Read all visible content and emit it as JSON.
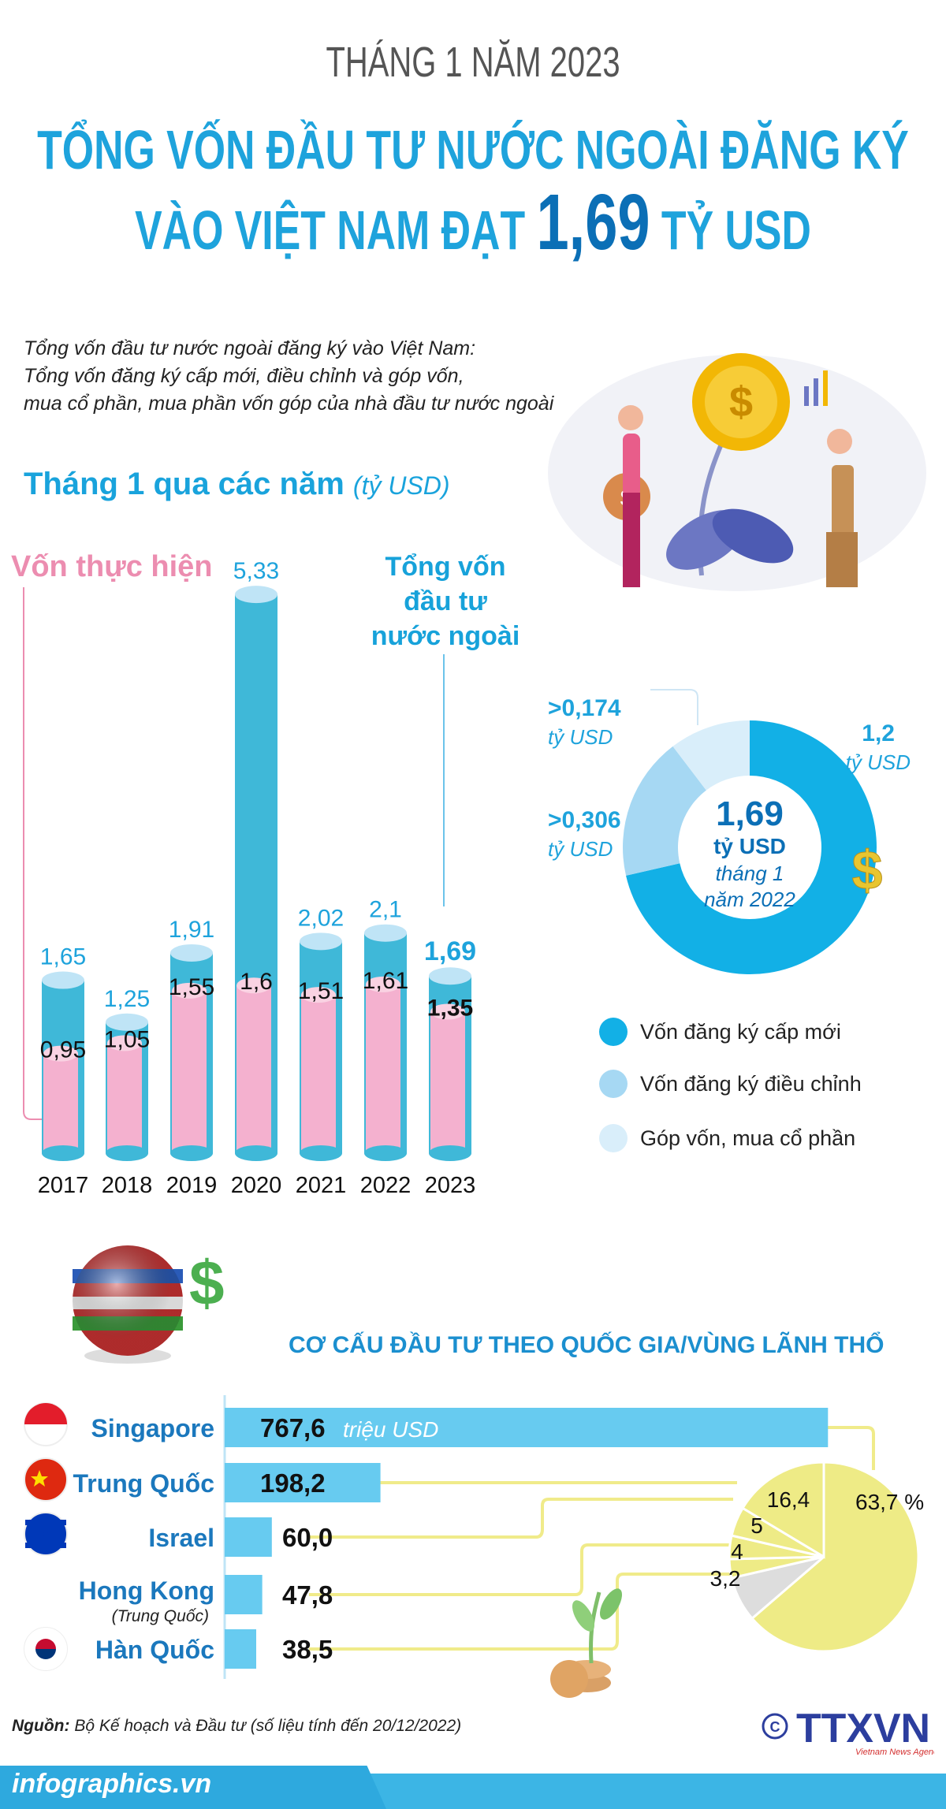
{
  "header": {
    "kicker": "THÁNG 1 NĂM 2023",
    "title_line1": "TỔNG VỐN ĐẦU TƯ NƯỚC NGOÀI ĐĂNG KÝ",
    "title_line2_pre": "VÀO VIỆT NAM ĐẠT",
    "title_value": "1,69",
    "title_line2_post": "TỶ USD"
  },
  "description": [
    "Tổng vốn đầu tư nước ngoài đăng ký vào Việt Nam:",
    "Tổng vốn đăng ký cấp mới, điều chỉnh và góp vốn,",
    "mua cổ phần, mua phần vốn góp của nhà đầu tư nước ngoài"
  ],
  "colors": {
    "title_blue": "#1ea3dc",
    "dark_blue": "#0b6fb6",
    "pink": "#f4b1cf",
    "bar_blue": "#3fb8d8",
    "donut_new": "#12b0e6",
    "donut_adj": "#a6d8f3",
    "donut_contrib": "#d9eefa",
    "country_bar": "#67cbf0",
    "pie_yellow": "#eeeb86",
    "pie_gray": "#dddddd"
  },
  "chart_data": [
    {
      "type": "bar",
      "title": "Tháng 1 qua các năm",
      "unit": "(tỷ USD)",
      "categories": [
        "2017",
        "2018",
        "2019",
        "2020",
        "2021",
        "2022",
        "2023"
      ],
      "category_labels": [
        "2017",
        "2018",
        "2019",
        "2020",
        "2021",
        "2022",
        "2023"
      ],
      "series": [
        {
          "name": "Tổng vốn đầu tư nước ngoài",
          "values": [
            1.65,
            1.25,
            1.91,
            5.33,
            2.02,
            2.1,
            1.69
          ],
          "labels": [
            "1,65",
            "1,25",
            "1,91",
            "5,33",
            "2,02",
            "2,1",
            "1,69"
          ]
        },
        {
          "name": "Vốn thực hiện",
          "values": [
            0.95,
            1.05,
            1.55,
            1.6,
            1.51,
            1.61,
            1.35
          ],
          "labels": [
            "0,95",
            "1,05",
            "1,55",
            "1,6",
            "1,51",
            "1,61",
            "1,35"
          ]
        }
      ],
      "series_title_total": "Tổng vốn đầu tư nước ngoài",
      "series_title_total_lines": [
        "Tổng vốn",
        "đầu tư",
        "nước ngoài"
      ],
      "series_title_disbursed": "Vốn thực hiện"
    },
    {
      "type": "pie",
      "variant": "donut",
      "center": {
        "value": "1,69",
        "unit": "tỷ USD",
        "period_line1": "tháng 1",
        "period_line2": "năm 2022"
      },
      "slices": [
        {
          "name": "Vốn đăng ký cấp mới",
          "value": 1.2,
          "label": "1,2",
          "unit": "tỷ USD"
        },
        {
          "name": "Vốn đăng ký điều chỉnh",
          "value": 0.306,
          "label": ">0,306",
          "unit": "tỷ USD"
        },
        {
          "name": "Góp vốn, mua cổ phần",
          "value": 0.174,
          "label": ">0,174",
          "unit": "tỷ USD"
        }
      ]
    },
    {
      "type": "bar",
      "orientation": "horizontal",
      "title": "CƠ CẤU ĐẦU TƯ THEO QUỐC GIA/VÙNG LÃNH THỔ",
      "unit": "triệu USD",
      "categories": [
        "Singapore",
        "Trung Quốc",
        "Israel",
        "Hong Kong",
        "Hàn Quốc"
      ],
      "category_notes": [
        "",
        "",
        "",
        "(Trung Quốc)",
        ""
      ],
      "values": [
        767.6,
        198.2,
        60.0,
        47.8,
        38.5
      ],
      "labels": [
        "767,6",
        "198,2",
        "60,0",
        "47,8",
        "38,5"
      ]
    },
    {
      "type": "pie",
      "unit": "%",
      "slices": [
        {
          "value": 63.7,
          "label": "63,7 %"
        },
        {
          "value": 7.7,
          "label": ""
        },
        {
          "value": 3.2,
          "label": "3,2"
        },
        {
          "value": 4,
          "label": "4"
        },
        {
          "value": 5,
          "label": "5"
        },
        {
          "value": 16.4,
          "label": "16,4"
        }
      ]
    }
  ],
  "footer": {
    "source_label": "Nguồn:",
    "source_text": "Bộ Kế hoạch và Đầu tư (số liệu tính đến 20/12/2022)",
    "site": "infographics.vn",
    "logo_text": "TTXVN",
    "logo_sub": "Vietnam News Agency",
    "copyright": "©"
  }
}
